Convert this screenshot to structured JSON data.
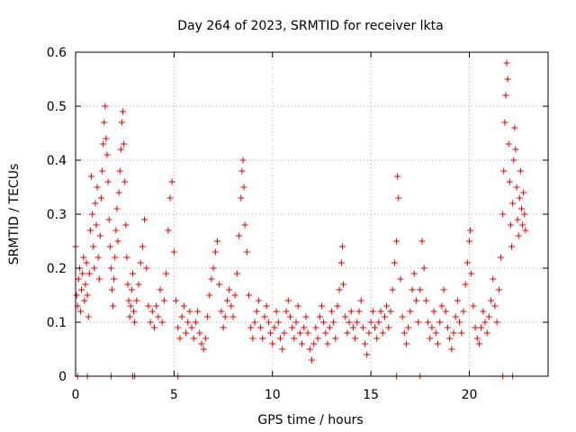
{
  "chart_data": {
    "type": "scatter",
    "title": "Day 264 of 2023, SRMTID for receiver lkta",
    "xlabel": "GPS time / hours",
    "ylabel": "SRMTID / TECUs",
    "xlim": [
      0,
      24
    ],
    "ylim": [
      0,
      0.6
    ],
    "xticks": [
      0,
      5,
      10,
      15,
      20
    ],
    "yticks": [
      0,
      0.1,
      0.2,
      0.3,
      0.4,
      0.5,
      0.6
    ],
    "xtick_labels": [
      "0",
      "5",
      "10",
      "15",
      "20"
    ],
    "ytick_labels": [
      "0",
      "0.1",
      "0.2",
      "0.3",
      "0.4",
      "0.5",
      "0.6"
    ],
    "grid": true,
    "marker": "+",
    "series": [
      {
        "name": "SRMTID",
        "color": "#e00000",
        "points": [
          [
            0.0,
            0.24
          ],
          [
            0.05,
            0.15
          ],
          [
            0.1,
            0.13
          ],
          [
            0.15,
            0.18
          ],
          [
            0.2,
            0.2
          ],
          [
            0.25,
            0.12
          ],
          [
            0.3,
            0.16
          ],
          [
            0.35,
            0.19
          ],
          [
            0.4,
            0.22
          ],
          [
            0.45,
            0.14
          ],
          [
            0.5,
            0.17
          ],
          [
            0.55,
            0.21
          ],
          [
            0.6,
            0.15
          ],
          [
            0.65,
            0.11
          ],
          [
            0.7,
            0.19
          ],
          [
            0.75,
            0.27
          ],
          [
            0.8,
            0.37
          ],
          [
            0.85,
            0.3
          ],
          [
            0.9,
            0.24
          ],
          [
            0.95,
            0.2
          ],
          [
            1.0,
            0.32
          ],
          [
            1.05,
            0.28
          ],
          [
            1.1,
            0.35
          ],
          [
            1.15,
            0.22
          ],
          [
            1.2,
            0.18
          ],
          [
            1.25,
            0.26
          ],
          [
            1.3,
            0.33
          ],
          [
            1.35,
            0.38
          ],
          [
            1.4,
            0.43
          ],
          [
            1.45,
            0.47
          ],
          [
            1.5,
            0.5
          ],
          [
            1.55,
            0.44
          ],
          [
            1.6,
            0.41
          ],
          [
            1.65,
            0.36
          ],
          [
            1.7,
            0.29
          ],
          [
            1.75,
            0.24
          ],
          [
            1.8,
            0.2
          ],
          [
            1.85,
            0.16
          ],
          [
            1.9,
            0.13
          ],
          [
            1.95,
            0.18
          ],
          [
            2.0,
            0.22
          ],
          [
            2.05,
            0.27
          ],
          [
            2.1,
            0.31
          ],
          [
            2.15,
            0.25
          ],
          [
            2.2,
            0.34
          ],
          [
            2.25,
            0.38
          ],
          [
            2.3,
            0.42
          ],
          [
            2.35,
            0.47
          ],
          [
            2.4,
            0.49
          ],
          [
            2.45,
            0.43
          ],
          [
            2.5,
            0.36
          ],
          [
            2.55,
            0.28
          ],
          [
            2.6,
            0.22
          ],
          [
            2.65,
            0.17
          ],
          [
            2.7,
            0.14
          ],
          [
            2.75,
            0.11
          ],
          [
            2.8,
            0.13
          ],
          [
            2.85,
            0.16
          ],
          [
            2.9,
            0.19
          ],
          [
            2.95,
            0.12
          ],
          [
            3.0,
            0.1
          ],
          [
            3.1,
            0.14
          ],
          [
            3.2,
            0.17
          ],
          [
            3.3,
            0.21
          ],
          [
            3.4,
            0.24
          ],
          [
            3.5,
            0.29
          ],
          [
            3.6,
            0.2
          ],
          [
            3.7,
            0.13
          ],
          [
            3.8,
            0.1
          ],
          [
            3.9,
            0.12
          ],
          [
            4.0,
            0.09
          ],
          [
            4.1,
            0.13
          ],
          [
            4.2,
            0.11
          ],
          [
            4.3,
            0.16
          ],
          [
            4.4,
            0.1
          ],
          [
            4.5,
            0.14
          ],
          [
            4.6,
            0.19
          ],
          [
            4.7,
            0.27
          ],
          [
            4.8,
            0.33
          ],
          [
            4.9,
            0.36
          ],
          [
            5.0,
            0.23
          ],
          [
            5.1,
            0.14
          ],
          [
            5.2,
            0.09
          ],
          [
            5.3,
            0.07
          ],
          [
            5.4,
            0.11
          ],
          [
            5.5,
            0.13
          ],
          [
            5.6,
            0.08
          ],
          [
            5.7,
            0.1
          ],
          [
            5.8,
            0.12
          ],
          [
            5.9,
            0.09
          ],
          [
            6.0,
            0.07
          ],
          [
            6.1,
            0.1
          ],
          [
            6.2,
            0.12
          ],
          [
            6.3,
            0.08
          ],
          [
            6.4,
            0.06
          ],
          [
            6.5,
            0.05
          ],
          [
            6.6,
            0.07
          ],
          [
            6.7,
            0.11
          ],
          [
            6.8,
            0.15
          ],
          [
            6.9,
            0.18
          ],
          [
            7.0,
            0.2
          ],
          [
            7.1,
            0.23
          ],
          [
            7.2,
            0.25
          ],
          [
            7.3,
            0.17
          ],
          [
            7.4,
            0.12
          ],
          [
            7.5,
            0.09
          ],
          [
            7.6,
            0.11
          ],
          [
            7.7,
            0.14
          ],
          [
            7.8,
            0.16
          ],
          [
            7.9,
            0.13
          ],
          [
            8.0,
            0.11
          ],
          [
            8.1,
            0.15
          ],
          [
            8.2,
            0.19
          ],
          [
            8.3,
            0.26
          ],
          [
            8.4,
            0.33
          ],
          [
            8.45,
            0.38
          ],
          [
            8.5,
            0.4
          ],
          [
            8.55,
            0.35
          ],
          [
            8.6,
            0.28
          ],
          [
            8.7,
            0.23
          ],
          [
            8.8,
            0.15
          ],
          [
            8.9,
            0.09
          ],
          [
            9.0,
            0.07
          ],
          [
            9.1,
            0.1
          ],
          [
            9.2,
            0.12
          ],
          [
            9.3,
            0.14
          ],
          [
            9.4,
            0.09
          ],
          [
            9.5,
            0.07
          ],
          [
            9.6,
            0.11
          ],
          [
            9.7,
            0.13
          ],
          [
            9.8,
            0.1
          ],
          [
            9.9,
            0.08
          ],
          [
            10.0,
            0.06
          ],
          [
            10.1,
            0.09
          ],
          [
            10.2,
            0.12
          ],
          [
            10.3,
            0.1
          ],
          [
            10.4,
            0.07
          ],
          [
            10.5,
            0.05
          ],
          [
            10.6,
            0.08
          ],
          [
            10.7,
            0.12
          ],
          [
            10.8,
            0.14
          ],
          [
            10.9,
            0.11
          ],
          [
            11.0,
            0.09
          ],
          [
            11.1,
            0.07
          ],
          [
            11.2,
            0.1
          ],
          [
            11.3,
            0.13
          ],
          [
            11.4,
            0.08
          ],
          [
            11.5,
            0.06
          ],
          [
            11.6,
            0.09
          ],
          [
            11.7,
            0.11
          ],
          [
            11.8,
            0.08
          ],
          [
            11.9,
            0.05
          ],
          [
            12.0,
            0.03
          ],
          [
            12.1,
            0.06
          ],
          [
            12.2,
            0.09
          ],
          [
            12.3,
            0.07
          ],
          [
            12.4,
            0.11
          ],
          [
            12.5,
            0.13
          ],
          [
            12.6,
            0.1
          ],
          [
            12.7,
            0.08
          ],
          [
            12.8,
            0.06
          ],
          [
            12.9,
            0.09
          ],
          [
            13.0,
            0.12
          ],
          [
            13.1,
            0.1
          ],
          [
            13.2,
            0.07
          ],
          [
            13.3,
            0.13
          ],
          [
            13.4,
            0.16
          ],
          [
            13.5,
            0.21
          ],
          [
            13.55,
            0.24
          ],
          [
            13.6,
            0.17
          ],
          [
            13.7,
            0.11
          ],
          [
            13.8,
            0.08
          ],
          [
            13.9,
            0.1
          ],
          [
            14.0,
            0.12
          ],
          [
            14.1,
            0.09
          ],
          [
            14.2,
            0.07
          ],
          [
            14.3,
            0.1
          ],
          [
            14.4,
            0.12
          ],
          [
            14.5,
            0.14
          ],
          [
            14.6,
            0.09
          ],
          [
            14.7,
            0.06
          ],
          [
            14.8,
            0.04
          ],
          [
            14.9,
            0.08
          ],
          [
            15.0,
            0.1
          ],
          [
            15.1,
            0.12
          ],
          [
            15.2,
            0.09
          ],
          [
            15.3,
            0.07
          ],
          [
            15.4,
            0.1
          ],
          [
            15.5,
            0.12
          ],
          [
            15.6,
            0.08
          ],
          [
            15.7,
            0.11
          ],
          [
            15.8,
            0.13
          ],
          [
            15.9,
            0.09
          ],
          [
            16.0,
            0.12
          ],
          [
            16.1,
            0.16
          ],
          [
            16.2,
            0.21
          ],
          [
            16.3,
            0.25
          ],
          [
            16.35,
            0.37
          ],
          [
            16.4,
            0.33
          ],
          [
            16.5,
            0.18
          ],
          [
            16.6,
            0.11
          ],
          [
            16.7,
            0.08
          ],
          [
            16.8,
            0.06
          ],
          [
            16.9,
            0.09
          ],
          [
            17.0,
            0.12
          ],
          [
            17.1,
            0.16
          ],
          [
            17.2,
            0.19
          ],
          [
            17.3,
            0.14
          ],
          [
            17.4,
            0.1
          ],
          [
            17.5,
            0.16
          ],
          [
            17.6,
            0.25
          ],
          [
            17.7,
            0.2
          ],
          [
            17.8,
            0.14
          ],
          [
            17.9,
            0.1
          ],
          [
            18.0,
            0.07
          ],
          [
            18.1,
            0.09
          ],
          [
            18.2,
            0.12
          ],
          [
            18.3,
            0.08
          ],
          [
            18.4,
            0.06
          ],
          [
            18.5,
            0.1
          ],
          [
            18.6,
            0.13
          ],
          [
            18.7,
            0.16
          ],
          [
            18.8,
            0.12
          ],
          [
            18.9,
            0.09
          ],
          [
            19.0,
            0.07
          ],
          [
            19.1,
            0.05
          ],
          [
            19.2,
            0.08
          ],
          [
            19.3,
            0.11
          ],
          [
            19.4,
            0.14
          ],
          [
            19.5,
            0.1
          ],
          [
            19.6,
            0.08
          ],
          [
            19.7,
            0.12
          ],
          [
            19.8,
            0.17
          ],
          [
            19.9,
            0.21
          ],
          [
            20.0,
            0.25
          ],
          [
            20.05,
            0.27
          ],
          [
            20.1,
            0.19
          ],
          [
            20.2,
            0.13
          ],
          [
            20.3,
            0.09
          ],
          [
            20.4,
            0.07
          ],
          [
            20.5,
            0.06
          ],
          [
            20.6,
            0.09
          ],
          [
            20.7,
            0.12
          ],
          [
            20.8,
            0.1
          ],
          [
            20.9,
            0.08
          ],
          [
            21.0,
            0.11
          ],
          [
            21.1,
            0.14
          ],
          [
            21.2,
            0.18
          ],
          [
            21.3,
            0.13
          ],
          [
            21.4,
            0.1
          ],
          [
            21.5,
            0.16
          ],
          [
            21.6,
            0.22
          ],
          [
            21.7,
            0.3
          ],
          [
            21.75,
            0.38
          ],
          [
            21.8,
            0.47
          ],
          [
            21.85,
            0.52
          ],
          [
            21.9,
            0.58
          ],
          [
            21.95,
            0.55
          ],
          [
            22.0,
            0.43
          ],
          [
            22.05,
            0.36
          ],
          [
            22.1,
            0.28
          ],
          [
            22.15,
            0.24
          ],
          [
            22.2,
            0.32
          ],
          [
            22.25,
            0.4
          ],
          [
            22.3,
            0.46
          ],
          [
            22.35,
            0.42
          ],
          [
            22.4,
            0.35
          ],
          [
            22.45,
            0.29
          ],
          [
            22.5,
            0.26
          ],
          [
            22.55,
            0.33
          ],
          [
            22.6,
            0.38
          ],
          [
            22.65,
            0.31
          ],
          [
            22.7,
            0.28
          ],
          [
            22.75,
            0.34
          ],
          [
            22.8,
            0.3
          ],
          [
            22.85,
            0.27
          ],
          [
            0.1,
            0.0
          ],
          [
            0.6,
            0.0
          ],
          [
            1.8,
            0.0
          ],
          [
            2.9,
            0.0
          ],
          [
            3.0,
            0.0
          ],
          [
            5.2,
            0.0
          ],
          [
            16.3,
            0.0
          ],
          [
            17.5,
            0.0
          ],
          [
            21.7,
            0.0
          ],
          [
            22.2,
            0.0
          ]
        ]
      }
    ]
  }
}
